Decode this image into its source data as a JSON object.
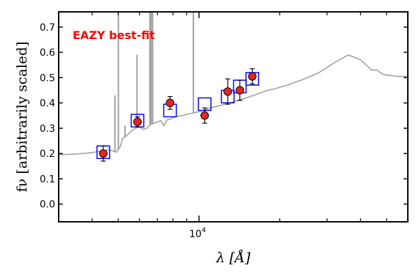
{
  "chart_data": {
    "type": "scatter",
    "title": "",
    "xlabel": "λ [Å]",
    "ylabel": "fν [arbitrarily scaled]",
    "xscale": "log",
    "xlim": [
      3000,
      60000
    ],
    "ylim": [
      -0.07,
      0.76
    ],
    "x_tick_labels": [
      {
        "value": 10000,
        "label": "10",
        "exponent": "4"
      }
    ],
    "x_minor_ticks": [
      4000,
      5000,
      6000,
      7000,
      8000,
      9000,
      20000,
      30000,
      40000,
      50000
    ],
    "y_ticks": [
      0.0,
      0.1,
      0.2,
      0.3,
      0.4,
      0.5,
      0.6,
      0.7
    ],
    "y_tick_labels": [
      "0.0",
      "0.1",
      "0.2",
      "0.3",
      "0.4",
      "0.5",
      "0.6",
      "0.7"
    ],
    "grid": false,
    "annotation": {
      "text": "EAZY best-fit",
      "color": "#ff0000"
    },
    "colors": {
      "spectrum": "#a0a0a0",
      "model": "#0000ff",
      "observed_fill": "#e8251e",
      "errorbar": "#000000"
    },
    "series": [
      {
        "kind": "model_spectrum",
        "x": [
          3000,
          3200,
          3400,
          3600,
          3800,
          4000,
          4200,
          4400,
          4600,
          4800,
          4900,
          5000,
          5100,
          5200,
          5400,
          5600,
          5800,
          6000,
          6200,
          6400,
          6600,
          6800,
          7000,
          7200,
          7400,
          7600,
          7800,
          8000,
          8200,
          8400,
          8600,
          8800,
          9000,
          9500,
          10000,
          11000,
          12000,
          13000,
          14000,
          15000,
          16000,
          17000,
          18000,
          19000,
          20000,
          21000,
          22000,
          24000,
          26000,
          28000,
          30000,
          32000,
          34000,
          36000,
          38000,
          40000,
          42000,
          44000,
          46000,
          48000,
          50000,
          55000,
          60000
        ],
        "y": [
          0.195,
          0.196,
          0.197,
          0.199,
          0.201,
          0.204,
          0.207,
          0.211,
          0.214,
          0.21,
          0.205,
          0.215,
          0.23,
          0.26,
          0.272,
          0.29,
          0.3,
          0.305,
          0.295,
          0.3,
          0.315,
          0.32,
          0.325,
          0.33,
          0.31,
          0.333,
          0.335,
          0.342,
          0.345,
          0.348,
          0.35,
          0.352,
          0.355,
          0.36,
          0.365,
          0.38,
          0.39,
          0.4,
          0.41,
          0.42,
          0.43,
          0.44,
          0.45,
          0.455,
          0.462,
          0.468,
          0.475,
          0.49,
          0.505,
          0.52,
          0.54,
          0.56,
          0.575,
          0.59,
          0.58,
          0.57,
          0.55,
          0.53,
          0.53,
          0.515,
          0.51,
          0.505,
          0.505
        ]
      },
      {
        "kind": "emission_lines",
        "lines": [
          {
            "x": 5007,
            "y": 0.76
          },
          {
            "x": 6563,
            "y": 0.76
          },
          {
            "x": 6630,
            "y": 0.76
          },
          {
            "x": 6720,
            "y": 0.76
          },
          {
            "x": 9530,
            "y": 0.76
          },
          {
            "x": 4861,
            "y": 0.43
          },
          {
            "x": 5876,
            "y": 0.59
          },
          {
            "x": 5300,
            "y": 0.31
          }
        ]
      },
      {
        "kind": "model_photometry",
        "x": [
          4400,
          5900,
          7800,
          10500,
          12800,
          14200,
          15800
        ],
        "y": [
          0.205,
          0.33,
          0.37,
          0.395,
          0.425,
          0.465,
          0.495
        ]
      },
      {
        "kind": "observed_photometry",
        "x": [
          4400,
          5900,
          7800,
          10500,
          12800,
          14200,
          15800
        ],
        "y": [
          0.2,
          0.325,
          0.4,
          0.35,
          0.445,
          0.45,
          0.505
        ],
        "yerr": [
          0.03,
          0.02,
          0.025,
          0.03,
          0.05,
          0.04,
          0.03
        ]
      }
    ]
  }
}
